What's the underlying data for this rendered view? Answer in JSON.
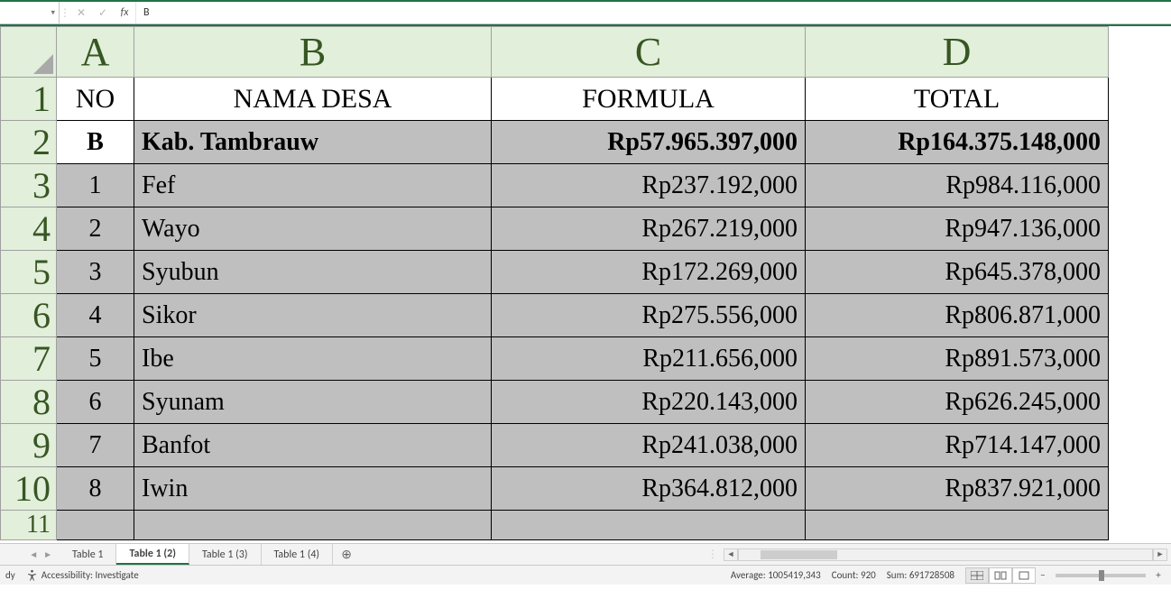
{
  "formula_bar": {
    "name_box": "",
    "cancel_glyph": "✕",
    "enter_glyph": "✓",
    "fx_glyph": "fx",
    "value": "B"
  },
  "column_letters": [
    "A",
    "B",
    "C",
    "D"
  ],
  "row_numbers": [
    "1",
    "2",
    "3",
    "4",
    "5",
    "6",
    "7",
    "8",
    "9",
    "10",
    "11"
  ],
  "header_row": {
    "no": "NO",
    "nama_desa": "NAMA DESA",
    "formula": "FORMULA",
    "total": "TOTAL"
  },
  "summary_row": {
    "code": "B",
    "nama": "Kab.  Tambrauw",
    "formula": "Rp57.965.397,000",
    "total": "Rp164.375.148,000"
  },
  "rows": [
    {
      "no": "1",
      "nama": "Fef",
      "formula": "Rp237.192,000",
      "total": "Rp984.116,000"
    },
    {
      "no": "2",
      "nama": "Wayo",
      "formula": "Rp267.219,000",
      "total": "Rp947.136,000"
    },
    {
      "no": "3",
      "nama": "Syubun",
      "formula": "Rp172.269,000",
      "total": "Rp645.378,000"
    },
    {
      "no": "4",
      "nama": "Sikor",
      "formula": "Rp275.556,000",
      "total": "Rp806.871,000"
    },
    {
      "no": "5",
      "nama": "Ibe",
      "formula": "Rp211.656,000",
      "total": "Rp891.573,000"
    },
    {
      "no": "6",
      "nama": "Syunam",
      "formula": "Rp220.143,000",
      "total": "Rp626.245,000"
    },
    {
      "no": "7",
      "nama": "Banfot",
      "formula": "Rp241.038,000",
      "total": "Rp714.147,000"
    },
    {
      "no": "8",
      "nama": "Iwin",
      "formula": "Rp364.812,000",
      "total": "Rp837.921,000"
    }
  ],
  "tabs": {
    "items": [
      "Table 1",
      "Table 1 (2)",
      "Table 1 (3)",
      "Table 1 (4)"
    ],
    "active_index": 1,
    "add_glyph": "⊕"
  },
  "status": {
    "ready": "dy",
    "accessibility": "Accessibility: Investigate",
    "average_label": "Average:",
    "average_value": "1005419,343",
    "count_label": "Count:",
    "count_value": "920",
    "sum_label": "Sum:",
    "sum_value": "691728508",
    "zoom_minus": "−",
    "zoom_plus": "+"
  },
  "col_widths": {
    "rowhdr": 62,
    "A": 86,
    "B": 396,
    "C": 348,
    "D": 336
  },
  "colors": {
    "accent": "#217346",
    "colhdr_bg": "#e2efda",
    "colhdr_fg": "#375623",
    "shade": "#bfbfbf"
  }
}
